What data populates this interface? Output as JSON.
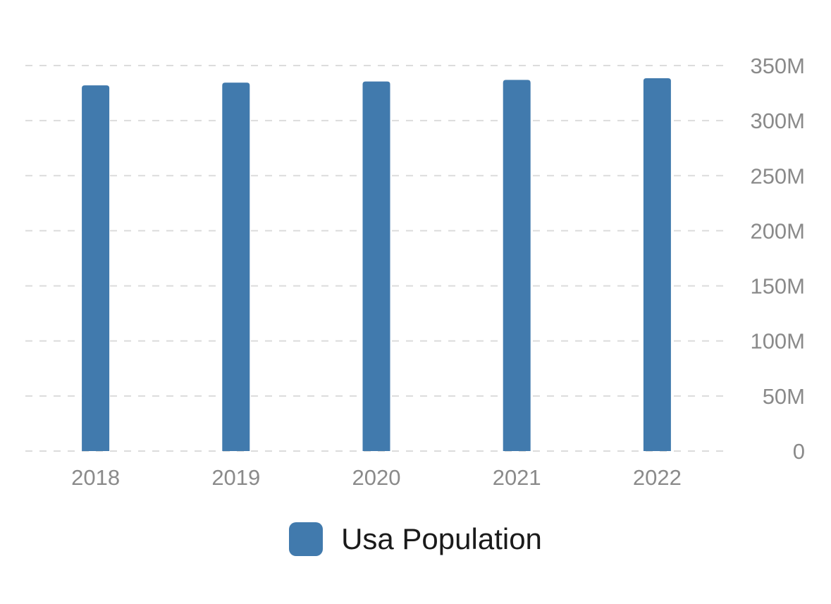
{
  "chart_data": {
    "type": "bar",
    "categories": [
      "2018",
      "2019",
      "2020",
      "2021",
      "2022"
    ],
    "series": [
      {
        "name": "Usa Population",
        "values": [
          332000000,
          334500000,
          335500000,
          337000000,
          338500000
        ],
        "color": "#417aad"
      }
    ],
    "y_ticks": [
      0,
      50000000,
      100000000,
      150000000,
      200000000,
      250000000,
      300000000,
      350000000
    ],
    "y_tick_labels": [
      "0",
      "50M",
      "100M",
      "150M",
      "200M",
      "250M",
      "300M",
      "350M"
    ],
    "ylim": [
      0,
      350000000
    ],
    "y_axis_position": "right",
    "grid": true,
    "legend_position": "bottom-center"
  }
}
